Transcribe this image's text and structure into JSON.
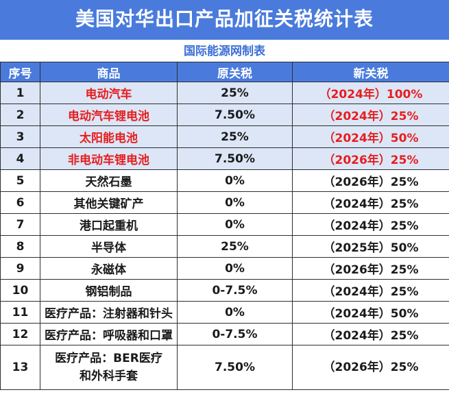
{
  "title": "美国对华出口产品加征关税统计表",
  "subtitle": "国际能源网制表",
  "headers": [
    "序号",
    "商品",
    "原关税",
    "新关税"
  ],
  "rows": [
    {
      "no": "1",
      "product": "电动汽车",
      "old": "25%",
      "new": "（2024年）100%",
      "highlight": true
    },
    {
      "no": "2",
      "product": "电动汽车锂电池",
      "old": "7.50%",
      "new": "（2024年）25%",
      "highlight": true
    },
    {
      "no": "3",
      "product": "太阳能电池",
      "old": "25%",
      "new": "（2024年）50%",
      "highlight": true
    },
    {
      "no": "4",
      "product": "非电动车锂电池",
      "old": "7.50%",
      "new": "（2026年）25%",
      "highlight": true
    },
    {
      "no": "5",
      "product": "天然石墨",
      "old": "0%",
      "new": "（2026年）25%",
      "highlight": false
    },
    {
      "no": "6",
      "product": "其他关键矿产",
      "old": "0%",
      "new": "（2024年）25%",
      "highlight": false
    },
    {
      "no": "7",
      "product": "港口起重机",
      "old": "0%",
      "new": "（2024年）25%",
      "highlight": false
    },
    {
      "no": "8",
      "product": "半导体",
      "old": "25%",
      "new": "（2025年）50%",
      "highlight": false
    },
    {
      "no": "9",
      "product": "永磁体",
      "old": "0%",
      "new": "（2026年）25%",
      "highlight": false
    },
    {
      "no": "10",
      "product": "钢铝制品",
      "old": "0-7.5%",
      "new": "（2024年）25%",
      "highlight": false
    },
    {
      "no": "11",
      "product": "医疗产品：注射器和针头",
      "old": "0%",
      "new": "（2024年）50%",
      "highlight": false
    },
    {
      "no": "12",
      "product": "医疗产品：呼吸器和口罩",
      "old": "0-7.5%",
      "new": "（2024年）25%",
      "highlight": false
    },
    {
      "no": "13",
      "product": "医疗产品：BER医疗\n和外科手套",
      "old": "7.50%",
      "new": "（2026年）25%",
      "highlight": false
    }
  ],
  "colors": {
    "header_bg": "#4a7bdc",
    "highlight_bg": "#dce6f7",
    "highlight_text": "#e61e1e"
  }
}
